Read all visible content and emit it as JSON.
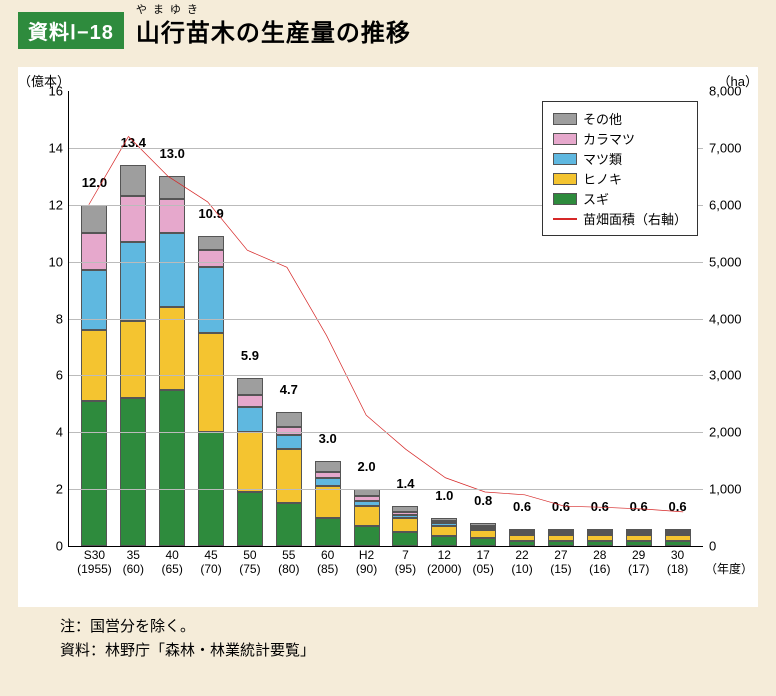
{
  "badge": "資料Ⅰ−18",
  "ruby": "やまゆき",
  "title": "山行苗木の生産量の推移",
  "axis_left_label": "（億本）",
  "axis_right_label": "（ha）",
  "x_unit": "（年度）",
  "note1": "注：国営分を除く。",
  "note2": "資料：林野庁「森林・林業統計要覧」",
  "colors": {
    "sugi": "#2e8b3d",
    "hinoki": "#f4c430",
    "matsu": "#5fb8e0",
    "karamatsu": "#e6a8cc",
    "other": "#9e9e9e",
    "line": "#d62828",
    "grid": "#bbbbbb",
    "bg": "#f5ecd9"
  },
  "legend": {
    "other": "その他",
    "karamatsu": "カラマツ",
    "matsu": "マツ類",
    "hinoki": "ヒノキ",
    "sugi": "スギ",
    "line": "苗畑面積（右軸）"
  },
  "ylim_left": [
    0,
    16
  ],
  "ytick_left_step": 2,
  "ylim_right": [
    0,
    8000
  ],
  "ytick_right_step": 1000,
  "bars": [
    {
      "x1": "S30",
      "x2": "(1955)",
      "total": 12.0,
      "seg": {
        "sugi": 5.1,
        "hinoki": 2.5,
        "matsu": 2.1,
        "karamatsu": 1.3,
        "other": 1.0
      },
      "line_ha": 6000
    },
    {
      "x1": "35",
      "x2": "(60)",
      "total": 13.4,
      "seg": {
        "sugi": 5.2,
        "hinoki": 2.7,
        "matsu": 2.8,
        "karamatsu": 1.6,
        "other": 1.1
      },
      "line_ha": 7200
    },
    {
      "x1": "40",
      "x2": "(65)",
      "total": 13.0,
      "seg": {
        "sugi": 5.5,
        "hinoki": 2.9,
        "matsu": 2.6,
        "karamatsu": 1.2,
        "other": 0.8
      },
      "line_ha": 6500
    },
    {
      "x1": "45",
      "x2": "(70)",
      "total": 10.9,
      "seg": {
        "sugi": 4.0,
        "hinoki": 3.5,
        "matsu": 2.3,
        "karamatsu": 0.6,
        "other": 0.5
      },
      "line_ha": 6050
    },
    {
      "x1": "50",
      "x2": "(75)",
      "total": 5.9,
      "seg": {
        "sugi": 1.9,
        "hinoki": 2.1,
        "matsu": 0.9,
        "karamatsu": 0.4,
        "other": 0.6
      },
      "line_ha": 5200
    },
    {
      "x1": "55",
      "x2": "(80)",
      "total": 4.7,
      "seg": {
        "sugi": 1.5,
        "hinoki": 1.9,
        "matsu": 0.5,
        "karamatsu": 0.3,
        "other": 0.5
      },
      "line_ha": 4900
    },
    {
      "x1": "60",
      "x2": "(85)",
      "total": 3.0,
      "seg": {
        "sugi": 1.0,
        "hinoki": 1.1,
        "matsu": 0.3,
        "karamatsu": 0.2,
        "other": 0.4
      },
      "line_ha": 3700
    },
    {
      "x1": "H2",
      "x2": "(90)",
      "total": 2.0,
      "seg": {
        "sugi": 0.7,
        "hinoki": 0.7,
        "matsu": 0.2,
        "karamatsu": 0.15,
        "other": 0.25
      },
      "line_ha": 2300
    },
    {
      "x1": "7",
      "x2": "(95)",
      "total": 1.4,
      "seg": {
        "sugi": 0.5,
        "hinoki": 0.5,
        "matsu": 0.1,
        "karamatsu": 0.1,
        "other": 0.2
      },
      "line_ha": 1700
    },
    {
      "x1": "12",
      "x2": "(2000)",
      "total": 1.0,
      "seg": {
        "sugi": 0.35,
        "hinoki": 0.35,
        "matsu": 0.1,
        "karamatsu": 0.07,
        "other": 0.13
      },
      "line_ha": 1200
    },
    {
      "x1": "17",
      "x2": "(05)",
      "total": 0.8,
      "seg": {
        "sugi": 0.28,
        "hinoki": 0.28,
        "matsu": 0.08,
        "karamatsu": 0.06,
        "other": 0.1
      },
      "line_ha": 950
    },
    {
      "x1": "22",
      "x2": "(10)",
      "total": 0.6,
      "seg": {
        "sugi": 0.2,
        "hinoki": 0.2,
        "matsu": 0.07,
        "karamatsu": 0.05,
        "other": 0.08
      },
      "line_ha": 900
    },
    {
      "x1": "27",
      "x2": "(15)",
      "total": 0.6,
      "seg": {
        "sugi": 0.2,
        "hinoki": 0.2,
        "matsu": 0.07,
        "karamatsu": 0.05,
        "other": 0.08
      },
      "line_ha": 700
    },
    {
      "x1": "28",
      "x2": "(16)",
      "total": 0.6,
      "seg": {
        "sugi": 0.2,
        "hinoki": 0.2,
        "matsu": 0.07,
        "karamatsu": 0.05,
        "other": 0.08
      },
      "line_ha": 680
    },
    {
      "x1": "29",
      "x2": "(17)",
      "total": 0.6,
      "seg": {
        "sugi": 0.2,
        "hinoki": 0.2,
        "matsu": 0.07,
        "karamatsu": 0.05,
        "other": 0.08
      },
      "line_ha": 650
    },
    {
      "x1": "30",
      "x2": "(18)",
      "total": 0.6,
      "seg": {
        "sugi": 0.2,
        "hinoki": 0.2,
        "matsu": 0.07,
        "karamatsu": 0.05,
        "other": 0.08
      },
      "line_ha": 600
    }
  ]
}
